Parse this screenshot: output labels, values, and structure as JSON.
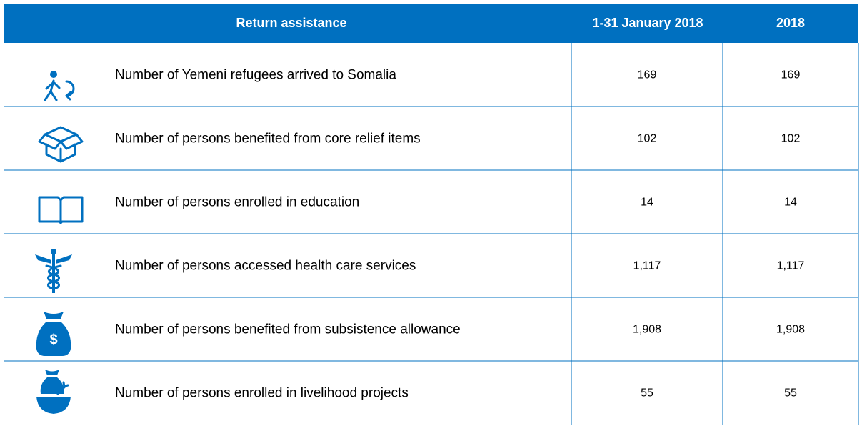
{
  "table": {
    "header": [
      "Return assistance",
      "1-31 January 2018",
      "2018"
    ],
    "rows": [
      [
        "Number of Yemeni refugees arrived to Somalia",
        "169",
        "169"
      ],
      [
        "Number of persons benefited from core relief items",
        "102",
        "102"
      ],
      [
        "Number of persons enrolled in education",
        "14",
        "14"
      ],
      [
        "Number of persons accessed health care services",
        "1,117",
        "1,117"
      ],
      [
        "Number of persons benefited from subsistence allowance",
        "1,908",
        "1,908"
      ],
      [
        "Number of persons enrolled in livelihood projects",
        "55",
        "55"
      ]
    ]
  }
}
